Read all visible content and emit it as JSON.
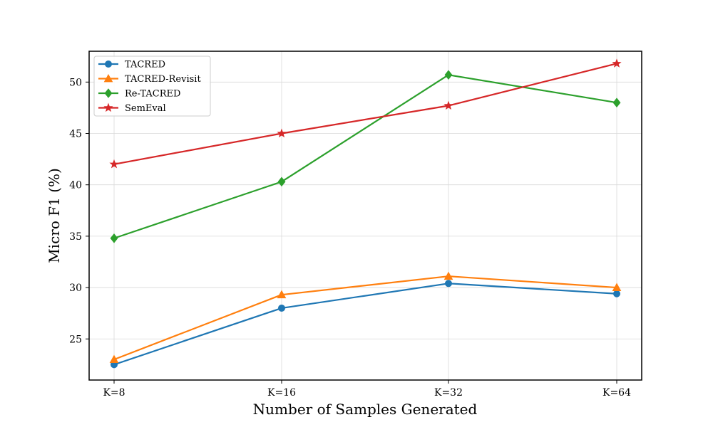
{
  "chart_data": {
    "type": "line",
    "categories": [
      "K=8",
      "K=16",
      "K=32",
      "K=64"
    ],
    "xlabel": "Number of Samples Generated",
    "ylabel": "Micro F1 (%)",
    "ylim": [
      21,
      53
    ],
    "yticks": [
      25,
      30,
      35,
      40,
      45,
      50
    ],
    "grid": true,
    "legend_position": "top-left",
    "series": [
      {
        "name": "TACRED",
        "values": [
          22.5,
          28.0,
          30.4,
          29.4
        ],
        "color": "#1f77b4",
        "marker": "circle"
      },
      {
        "name": "TACRED-Revisit",
        "values": [
          23.0,
          29.3,
          31.1,
          30.0
        ],
        "color": "#ff7f0e",
        "marker": "triangle"
      },
      {
        "name": "Re-TACRED",
        "values": [
          34.8,
          40.3,
          50.7,
          48.0
        ],
        "color": "#2ca02c",
        "marker": "diamond"
      },
      {
        "name": "SemEval",
        "values": [
          42.0,
          45.0,
          47.7,
          51.8
        ],
        "color": "#d62728",
        "marker": "star"
      }
    ]
  }
}
